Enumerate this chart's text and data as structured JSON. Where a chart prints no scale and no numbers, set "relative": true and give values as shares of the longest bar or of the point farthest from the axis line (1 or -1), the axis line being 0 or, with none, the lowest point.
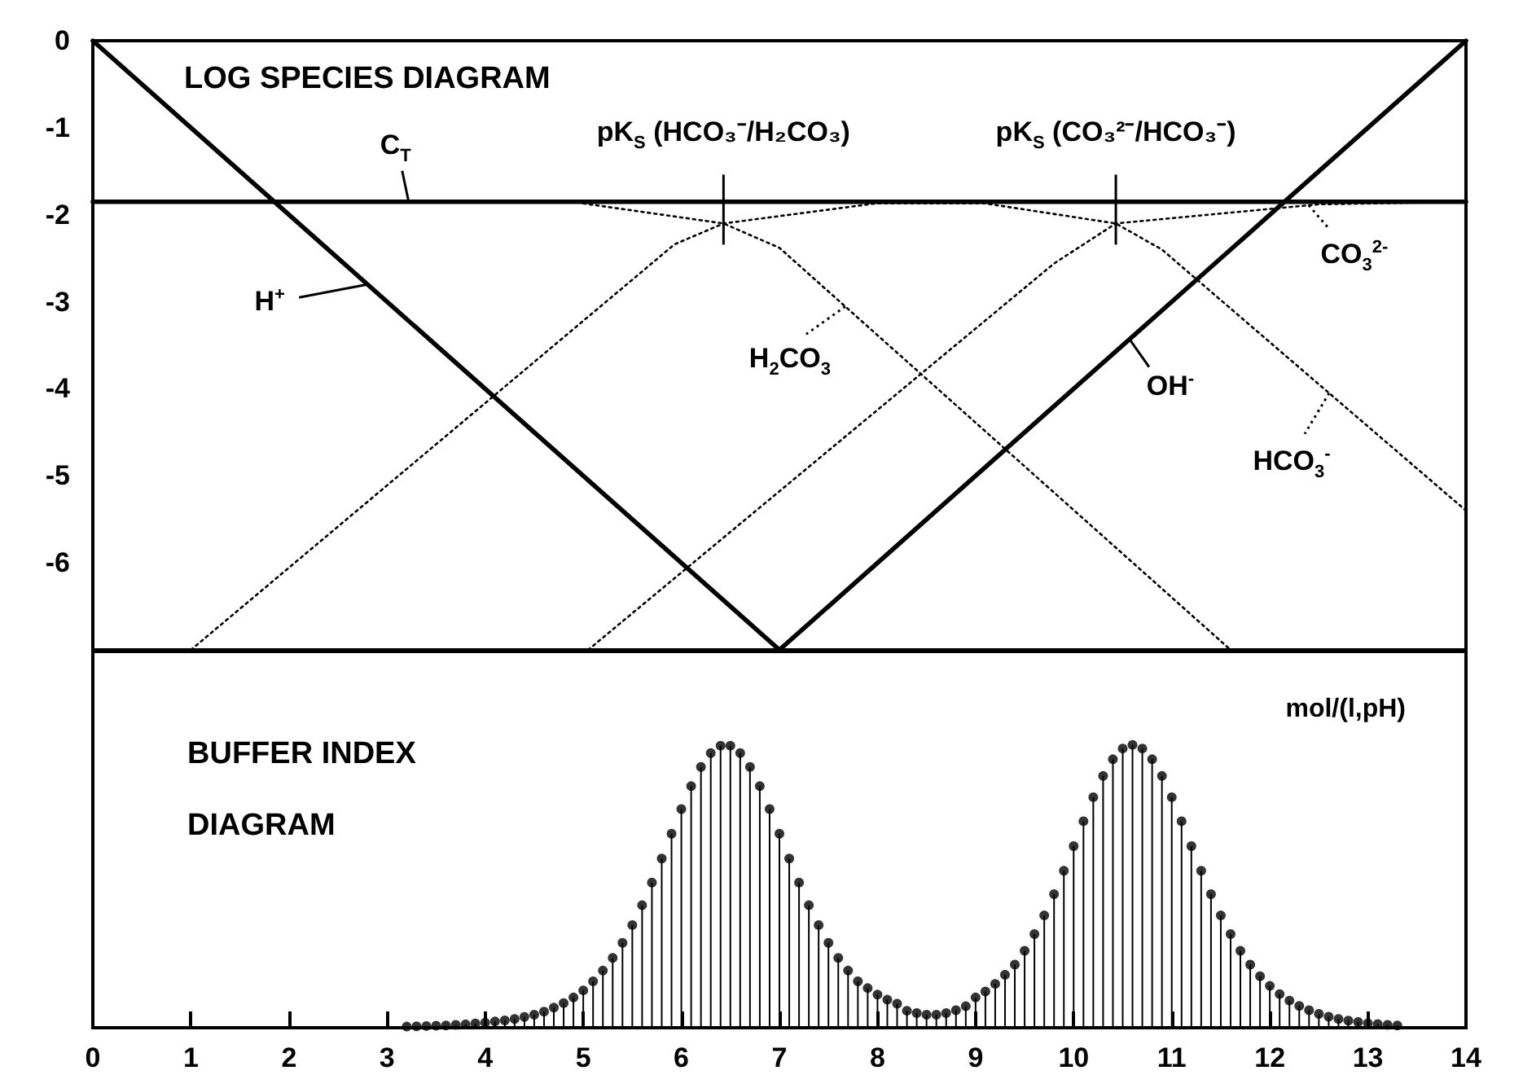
{
  "chart_data": [
    {
      "type": "line",
      "title": "LOG SPECIES DIAGRAM",
      "xlim": [
        0,
        14
      ],
      "ylim": [
        -7,
        0
      ],
      "yticks": [
        0,
        -1,
        -2,
        -3,
        -4,
        -5,
        -6
      ],
      "tick_labels": "y",
      "marker": "none",
      "grid": false,
      "legend": "right",
      "series": [
        {
          "name": "C$_{T}$",
          "color": "#000000",
          "line_style": "solid",
          "x": [
            0,
            14
          ],
          "values": [
            -1.85,
            -1.85
          ]
        },
        {
          "name": "H$^{+}$",
          "color": "#000000",
          "line_style": "solid",
          "x": [
            0,
            7
          ],
          "values": [
            0,
            -7
          ]
        },
        {
          "name": "OH$^{-}$",
          "color": "#000000",
          "line_style": "solid",
          "x": [
            7,
            14
          ],
          "values": [
            -7,
            0
          ]
        },
        {
          "name": "H$_{2}$CO$_{3}$",
          "color": "#000000",
          "line_style": "dotted",
          "x": [
            5.0,
            6.43,
            7.0,
            11.6
          ],
          "values": [
            -1.87,
            -2.1,
            -2.38,
            -7
          ]
        },
        {
          "name": "HCO$_{3}$$^{-}$",
          "color": "#000000",
          "line_style": "dotted",
          "x": [
            1.0,
            5.93,
            6.43,
            7.98,
            9.1,
            10.43,
            10.9,
            14
          ],
          "values": [
            -7,
            -2.34,
            -2.1,
            -1.87,
            -1.87,
            -2.1,
            -2.4,
            -5.4
          ]
        },
        {
          "name": "CO$_{3}$$^{2-}$",
          "color": "#000000",
          "line_style": "dotted",
          "x": [
            5.05,
            9.8,
            10.43,
            12.5,
            14
          ],
          "values": [
            -7,
            -2.56,
            -2.1,
            -1.88,
            -1.85
          ]
        }
      ],
      "annotations": [
        {
          "text": "pK$_{S}$ (HCO₃⁻/H₂CO₃)",
          "x": 6.43,
          "y": -2.1
        },
        {
          "text": "pK$_{S}$ (CO₃²⁻/HCO₃⁻)",
          "x": 10.43,
          "y": -2.1
        }
      ]
    },
    {
      "type": "lollipop",
      "title": "BUFFER INDEX DIAGRAM",
      "ylabel": "mol/(l,pH)",
      "relative": true,
      "color": "#000000",
      "marker": "circle",
      "xlim": [
        0,
        14
      ],
      "xticks": [
        0,
        1,
        2,
        3,
        4,
        5,
        6,
        7,
        8,
        9,
        10,
        11,
        12,
        13,
        14
      ],
      "tick_labels": "x",
      "x": [
        3.2,
        3.3,
        3.4,
        3.5,
        3.6,
        3.7,
        3.8,
        3.9,
        4.0,
        4.1,
        4.2,
        4.3,
        4.4,
        4.5,
        4.6,
        4.7,
        4.8,
        4.9,
        5.0,
        5.1,
        5.2,
        5.3,
        5.4,
        5.5,
        5.6,
        5.7,
        5.8,
        5.9,
        6.0,
        6.1,
        6.2,
        6.3,
        6.4,
        6.5,
        6.6,
        6.7,
        6.8,
        6.9,
        7.0,
        7.1,
        7.2,
        7.3,
        7.4,
        7.5,
        7.6,
        7.7,
        7.8,
        7.9,
        8.0,
        8.1,
        8.2,
        8.3,
        8.4,
        8.5,
        8.6,
        8.7,
        8.8,
        8.9,
        9.0,
        9.1,
        9.2,
        9.3,
        9.4,
        9.5,
        9.6,
        9.7,
        9.8,
        9.9,
        10.0,
        10.1,
        10.2,
        10.3,
        10.4,
        10.5,
        10.6,
        10.7,
        10.8,
        10.9,
        11.0,
        11.1,
        11.2,
        11.3,
        11.4,
        11.5,
        11.6,
        11.7,
        11.8,
        11.9,
        12.0,
        12.1,
        12.2,
        12.3,
        12.4,
        12.5,
        12.6,
        12.7,
        12.8,
        12.9,
        13.0,
        13.1,
        13.2,
        13.3
      ],
      "values": [
        0.004,
        0.005,
        0.006,
        0.007,
        0.008,
        0.01,
        0.012,
        0.015,
        0.018,
        0.022,
        0.026,
        0.031,
        0.038,
        0.046,
        0.057,
        0.071,
        0.087,
        0.107,
        0.132,
        0.164,
        0.202,
        0.247,
        0.3,
        0.363,
        0.433,
        0.513,
        0.598,
        0.686,
        0.773,
        0.854,
        0.922,
        0.971,
        0.997,
        0.997,
        0.971,
        0.922,
        0.854,
        0.773,
        0.686,
        0.598,
        0.513,
        0.433,
        0.363,
        0.3,
        0.247,
        0.202,
        0.164,
        0.14,
        0.117,
        0.099,
        0.085,
        0.06,
        0.052,
        0.046,
        0.046,
        0.052,
        0.062,
        0.076,
        0.107,
        0.128,
        0.155,
        0.187,
        0.223,
        0.272,
        0.331,
        0.397,
        0.472,
        0.555,
        0.642,
        0.73,
        0.815,
        0.89,
        0.949,
        0.987,
        1,
        0.987,
        0.949,
        0.89,
        0.815,
        0.73,
        0.642,
        0.555,
        0.472,
        0.397,
        0.331,
        0.272,
        0.223,
        0.182,
        0.148,
        0.119,
        0.096,
        0.077,
        0.062,
        0.049,
        0.039,
        0.031,
        0.025,
        0.02,
        0.016,
        0.013,
        0.01,
        0.008
      ]
    }
  ]
}
